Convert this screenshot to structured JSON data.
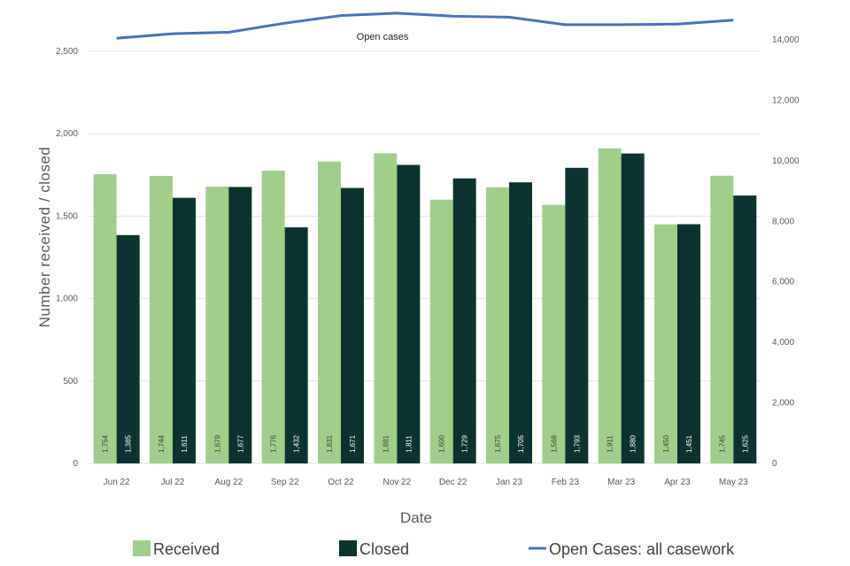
{
  "chart_data": {
    "type": "bar",
    "title": "",
    "xlabel": "Date",
    "ylabel": "Number received / closed",
    "categories": [
      "Jun 22",
      "Jul 22",
      "Aug 22",
      "Sep 22",
      "Oct 22",
      "Nov 22",
      "Dec 22",
      "Jan 23",
      "Feb 23",
      "Mar 23",
      "Apr 23",
      "May 23"
    ],
    "series": [
      {
        "name": "Received",
        "color": "#9fcf8a",
        "axis": "left",
        "values": [
          1754,
          1744,
          1679,
          1776,
          1831,
          1881,
          1600,
          1675,
          1568,
          1911,
          1450,
          1745
        ],
        "labels": [
          "1,754",
          "1,744",
          "1,679",
          "1,776",
          "1,831",
          "1,881",
          "1,600",
          "1,675",
          "1,568",
          "1,911",
          "1,450",
          "1,745"
        ]
      },
      {
        "name": "Closed",
        "color": "#0b3330",
        "axis": "left",
        "values": [
          1385,
          1611,
          1677,
          1432,
          1671,
          1811,
          1729,
          1705,
          1793,
          1880,
          1451,
          1625
        ],
        "labels": [
          "1,385",
          "1,611",
          "1,677",
          "1,432",
          "1,671",
          "1,811",
          "1,729",
          "1,705",
          "1,793",
          "1,880",
          "1,451",
          "1,625"
        ]
      },
      {
        "name": "Open Cases: all casework",
        "type": "line",
        "color": "#4472c4",
        "axis": "right",
        "values": [
          14050,
          14200,
          14250,
          14550,
          14800,
          14880,
          14780,
          14750,
          14500,
          14500,
          14520,
          14650
        ]
      }
    ],
    "ylim": [
      0,
      2500
    ],
    "yticks": [
      0,
      500,
      1000,
      1500,
      2000,
      2500
    ],
    "ytick_labels": [
      "0",
      "500",
      "1,000",
      "1,500",
      "2,000",
      "2,500"
    ],
    "y2lim": [
      0,
      14000
    ],
    "y2ticks": [
      0,
      2000,
      4000,
      6000,
      8000,
      10000,
      12000,
      14000
    ],
    "y2tick_labels": [
      "0",
      "2,000",
      "4,000",
      "6,000",
      "8,000",
      "10,000",
      "12,000",
      "14,000"
    ],
    "annotation": "Open cases",
    "legend_position": "bottom",
    "grid": true
  }
}
